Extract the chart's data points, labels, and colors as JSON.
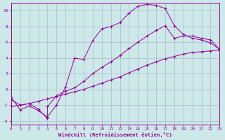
{
  "xlabel": "Windchill (Refroidissement éolien,°C)",
  "line_color": "#990099",
  "background_color": "#cce8e8",
  "grid_color": "#aabbcc",
  "xlim": [
    0,
    23
  ],
  "ylim": [
    -4.5,
    11
  ],
  "xticks": [
    0,
    1,
    2,
    3,
    4,
    5,
    6,
    7,
    8,
    9,
    10,
    11,
    12,
    13,
    14,
    15,
    16,
    17,
    18,
    19,
    20,
    21,
    22,
    23
  ],
  "yticks": [
    -4,
    -2,
    0,
    2,
    4,
    6,
    8,
    10
  ],
  "series1_x": [
    0,
    1,
    2,
    3,
    4,
    5,
    6,
    7,
    8,
    9,
    10,
    11,
    12,
    13,
    14,
    15,
    16,
    17,
    18,
    19,
    20,
    21,
    22,
    23
  ],
  "series1_y": [
    -1,
    -2.6,
    -2.1,
    -2.7,
    -3.5,
    -2.0,
    0.3,
    4.0,
    3.8,
    6.2,
    7.7,
    8.0,
    8.5,
    9.7,
    10.6,
    10.8,
    10.7,
    10.3,
    8.1,
    7.0,
    6.5,
    6.3,
    5.9,
    5.1
  ],
  "series2_x": [
    0,
    1,
    2,
    3,
    4,
    5,
    6,
    7,
    8,
    9,
    10,
    11,
    12,
    13,
    14,
    15,
    16,
    17,
    18,
    19,
    20,
    21,
    22,
    23
  ],
  "series2_y": [
    -2.2,
    -2.0,
    -1.8,
    -1.5,
    -1.2,
    -0.9,
    -0.6,
    -0.3,
    0.0,
    0.4,
    0.8,
    1.2,
    1.6,
    2.1,
    2.6,
    3.1,
    3.5,
    3.9,
    4.2,
    4.5,
    4.7,
    4.8,
    4.9,
    5.0
  ],
  "series3_x": [
    0,
    1,
    2,
    3,
    4,
    4,
    5,
    6,
    7,
    8,
    9,
    10,
    11,
    12,
    13,
    14,
    15,
    16,
    17,
    18,
    19,
    20,
    21,
    22,
    23
  ],
  "series3_y": [
    -1.3,
    -2.0,
    -1.8,
    -2.5,
    -3.7,
    -2.2,
    -0.8,
    -0.2,
    0.2,
    1.0,
    2.0,
    2.8,
    3.5,
    4.3,
    5.2,
    6.0,
    6.8,
    7.5,
    8.1,
    6.5,
    6.8,
    6.8,
    6.5,
    6.3,
    5.1
  ]
}
